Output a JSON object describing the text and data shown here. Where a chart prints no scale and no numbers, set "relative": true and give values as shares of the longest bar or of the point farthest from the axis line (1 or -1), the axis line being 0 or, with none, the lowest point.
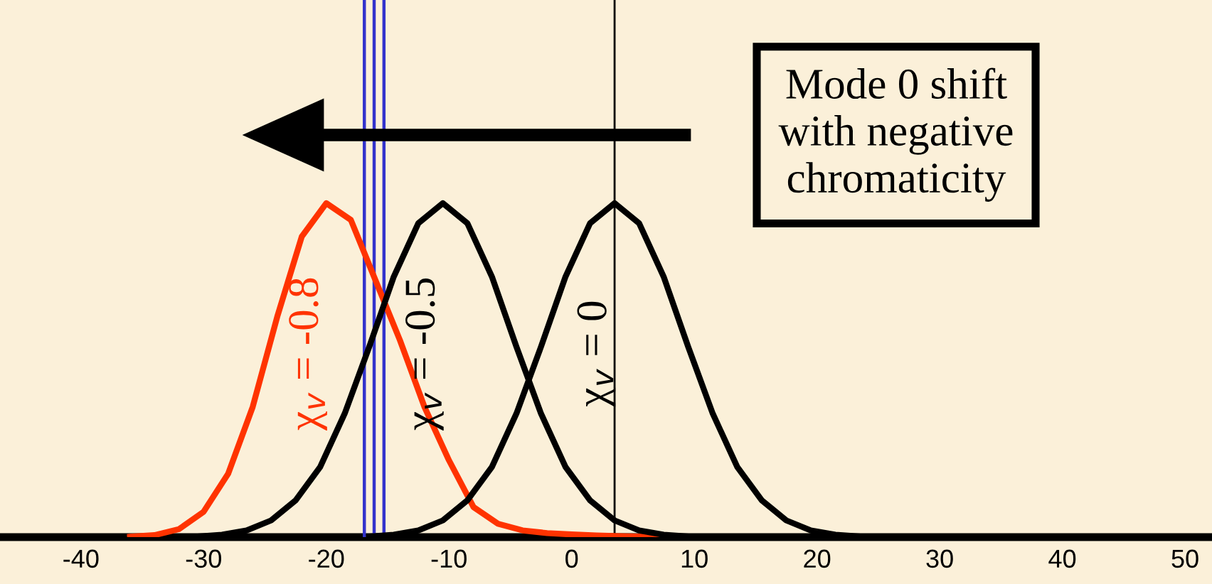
{
  "chart_data": {
    "type": "line",
    "relative": true,
    "legend": false,
    "marker": "none",
    "line_style": "solid",
    "grid": false,
    "xlim": [
      -46.6,
      52.2
    ],
    "xticks": [
      -40,
      -30,
      -20,
      -10,
      0,
      10,
      20,
      30,
      40,
      50
    ],
    "annotations": [
      "Mode 0 shift\nwith negative\nchromaticity"
    ],
    "ref_lines": [
      {
        "axis": "x",
        "value": -16.9,
        "color": "#3333cc"
      },
      {
        "axis": "x",
        "value": -16.1,
        "color": "#3333cc"
      },
      {
        "axis": "x",
        "value": -15.3,
        "color": "#3333cc"
      },
      {
        "axis": "x",
        "value": 3.5,
        "color": "#000000"
      }
    ],
    "series": [
      {
        "name": "χ$_{v}$ = -0.8",
        "color": "#ff3300",
        "x": [
          -36,
          -34,
          -32,
          -30,
          -28,
          -26,
          -24,
          -22,
          -20,
          -18,
          -16,
          -14,
          -12,
          -10,
          -8,
          -6,
          -4,
          -2,
          0,
          2,
          4,
          6,
          8
        ],
        "values": [
          0.001,
          0.006,
          0.024,
          0.076,
          0.19,
          0.39,
          0.66,
          0.9,
          1,
          0.95,
          0.77,
          0.59,
          0.39,
          0.23,
          0.09,
          0.04,
          0.02,
          0.012,
          0.008,
          0.005,
          0.003,
          0.001,
          0
        ]
      },
      {
        "name": "χ$_{v}$ = -0.5",
        "color": "#000000",
        "x": [
          -30.5,
          -28.5,
          -26.5,
          -24.5,
          -22.5,
          -20.5,
          -18.5,
          -16.5,
          -14.5,
          -12.5,
          -10.5,
          -8.5,
          -6.5,
          -4.5,
          -2.5,
          -0.5,
          1.5,
          3.5,
          5.5,
          7.5,
          9.5
        ],
        "values": [
          0.002,
          0.007,
          0.02,
          0.05,
          0.11,
          0.21,
          0.37,
          0.57,
          0.78,
          0.94,
          1,
          0.94,
          0.78,
          0.57,
          0.37,
          0.21,
          0.11,
          0.05,
          0.02,
          0.007,
          0.002
        ]
      },
      {
        "name": "χ$_{v}$ = 0",
        "color": "#000000",
        "x": [
          -16.5,
          -14.5,
          -12.5,
          -10.5,
          -8.5,
          -6.5,
          -4.5,
          -2.5,
          -0.5,
          1.5,
          3.5,
          5.5,
          7.5,
          9.5,
          11.5,
          13.5,
          15.5,
          17.5,
          19.5,
          21.5,
          23.5
        ],
        "values": [
          0.002,
          0.007,
          0.02,
          0.05,
          0.11,
          0.21,
          0.37,
          0.57,
          0.78,
          0.94,
          1,
          0.94,
          0.78,
          0.57,
          0.37,
          0.21,
          0.11,
          0.05,
          0.02,
          0.007,
          0.002
        ]
      }
    ]
  }
}
